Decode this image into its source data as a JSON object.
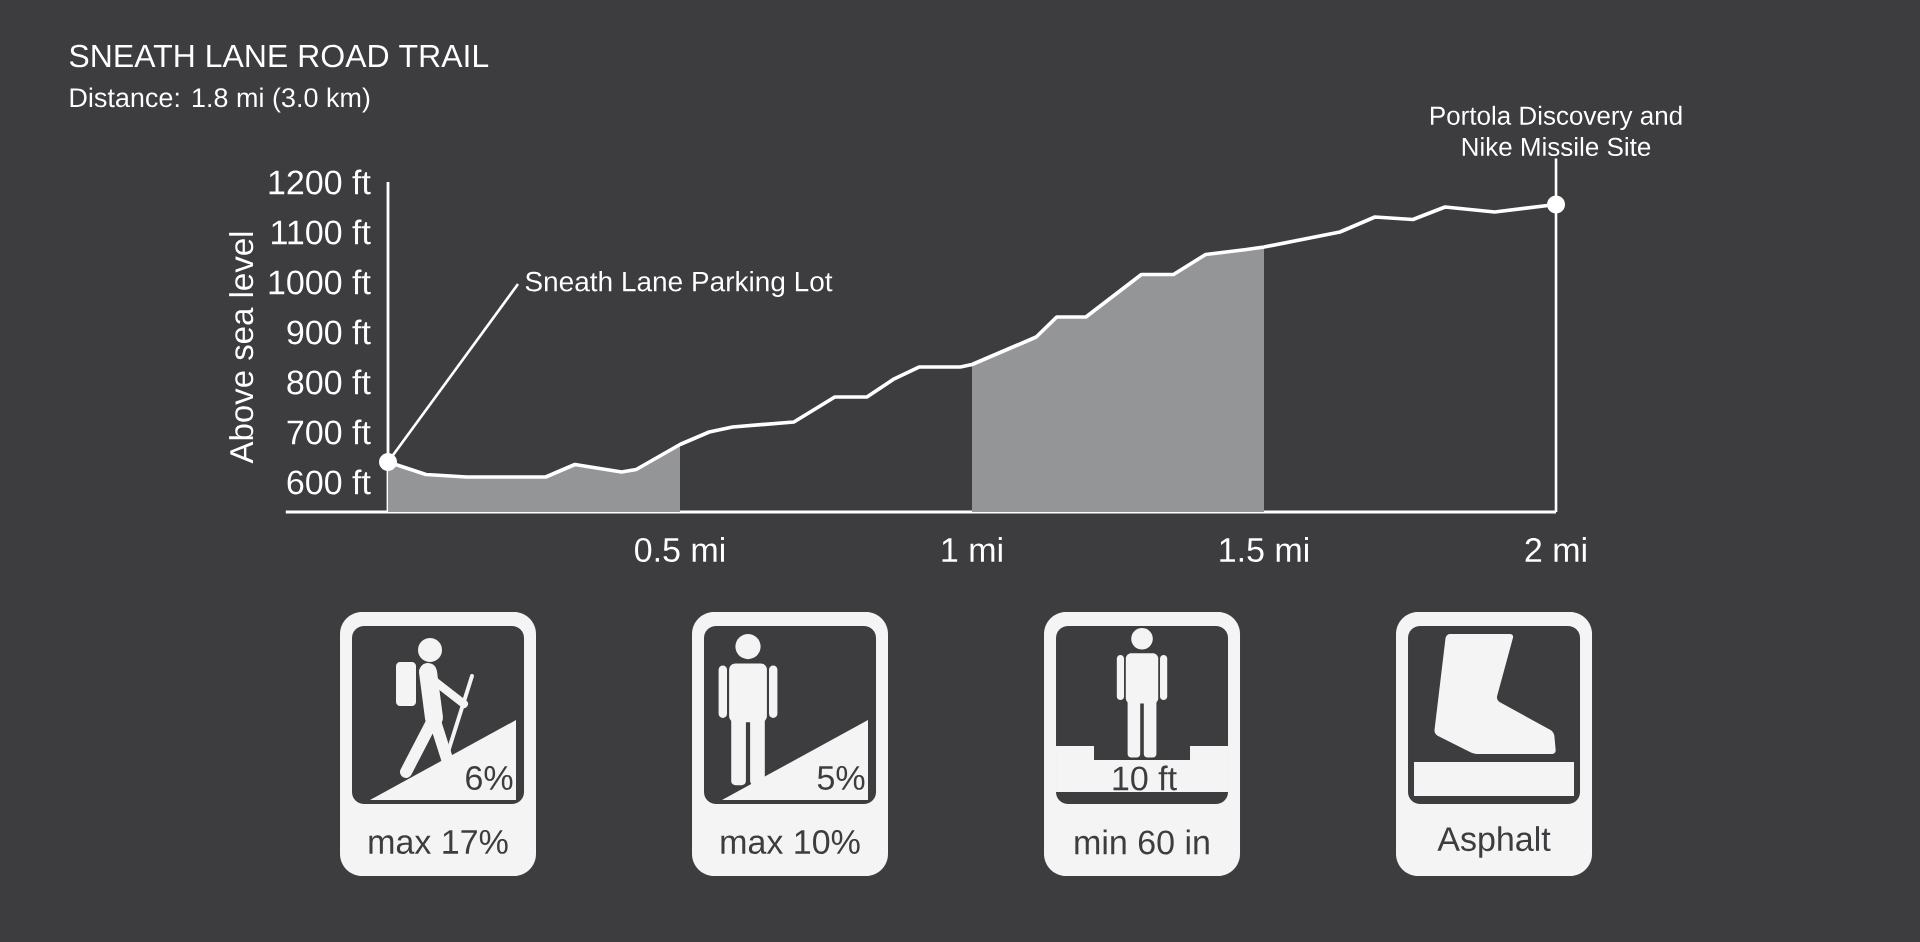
{
  "chart_data": [
    {
      "type": "line",
      "title": "SNEATH LANE ROAD TRAIL",
      "subtitle": "Distance: 1.8 mi (3.0 km)",
      "ylabel": "Above sea level",
      "x": [
        0,
        0.065,
        0.135,
        0.215,
        0.27,
        0.32,
        0.4,
        0.425,
        0.5,
        0.55,
        0.59,
        0.695,
        0.765,
        0.82,
        0.865,
        0.91,
        0.98,
        1.0,
        1.07,
        1.11,
        1.145,
        1.195,
        1.29,
        1.345,
        1.4,
        1.47,
        1.5,
        1.63,
        1.69,
        1.755,
        1.81,
        1.895,
        2.0
      ],
      "series": [
        {
          "type": "area",
          "color": "#939596",
          "x": [
            0,
            0.065,
            0.135,
            0.215,
            0.27,
            0.32,
            0.4,
            0.425,
            0.5
          ],
          "values": [
            640,
            615,
            610,
            610,
            610,
            635,
            620,
            625,
            675
          ]
        },
        {
          "type": "area",
          "color": "#939596",
          "x": [
            1.0,
            1.07,
            1.11,
            1.145,
            1.195,
            1.29,
            1.345,
            1.4,
            1.47,
            1.5
          ],
          "values": [
            835,
            870,
            890,
            930,
            930,
            1015,
            1015,
            1055,
            1065,
            1070
          ]
        },
        {
          "color": "#ffffff",
          "values": [
            640,
            615,
            610,
            610,
            610,
            635,
            620,
            625,
            675,
            700,
            710,
            720,
            770,
            770,
            805,
            830,
            830,
            835,
            870,
            890,
            930,
            930,
            1015,
            1015,
            1055,
            1065,
            1070,
            1100,
            1130,
            1125,
            1150,
            1140,
            1155
          ]
        }
      ],
      "xlim": [
        -0.175,
        2
      ],
      "xticks": [
        {
          "value": 0.5,
          "label": "0.5 mi"
        },
        {
          "value": 1,
          "label": "1 mi"
        },
        {
          "value": 1.5,
          "label": "1.5 mi"
        },
        {
          "value": 2,
          "label": "2 mi"
        }
      ],
      "ylim": [
        540,
        1200
      ],
      "yticks": [
        {
          "value": 600,
          "label": "600 ft"
        },
        {
          "value": 700,
          "label": "700 ft"
        },
        {
          "value": 800,
          "label": "800 ft"
        },
        {
          "value": 900,
          "label": "900 ft"
        },
        {
          "value": 1000,
          "label": "1000 ft"
        },
        {
          "value": 1100,
          "label": "1100 ft"
        },
        {
          "value": 1200,
          "label": "1200 ft"
        }
      ],
      "annotations": [
        {
          "text": "Sneath Lane Parking Lot",
          "x": 0,
          "y": 640
        },
        {
          "text": "Portola Discovery and Nike Missile Site",
          "x": 2,
          "y": 1155
        }
      ]
    },
    {
      "type": "other",
      "annotations": [
        "6%",
        "max 17%",
        "5%",
        "max 10%",
        "10 ft",
        "min 60 in",
        "Asphalt"
      ]
    }
  ]
}
